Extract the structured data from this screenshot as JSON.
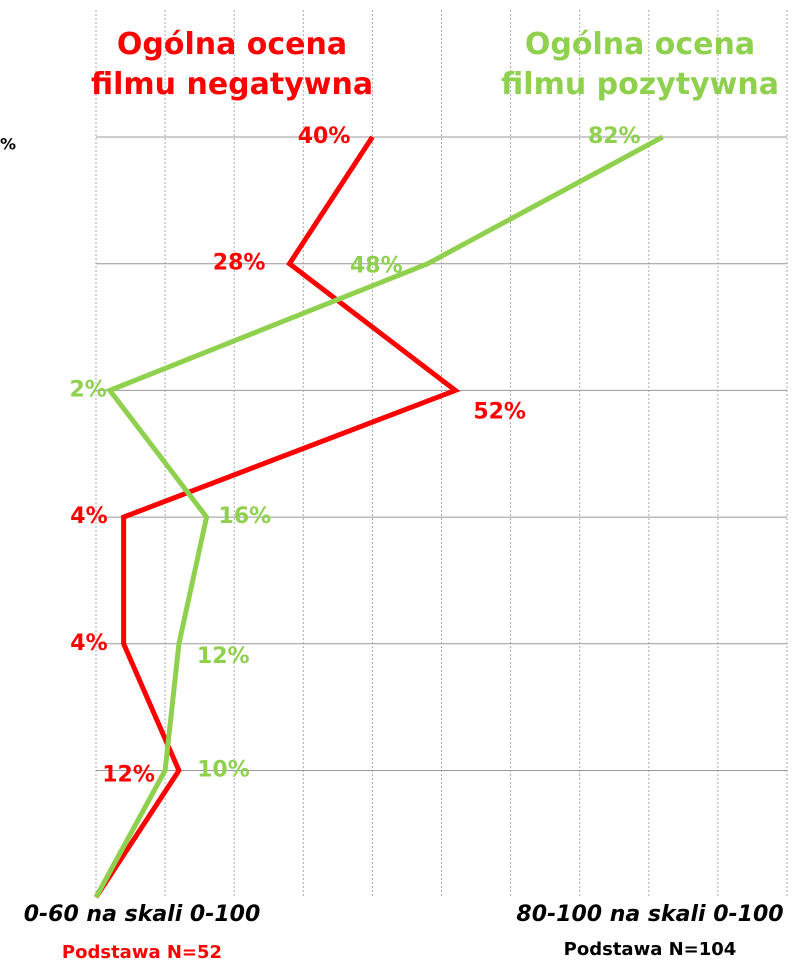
{
  "chart_data": {
    "type": "line",
    "annotation": "%",
    "categories": [
      null,
      null,
      null,
      null,
      null,
      null,
      null
    ],
    "xlim": [
      0,
      100
    ],
    "xticks": [
      0,
      10,
      20,
      30,
      40,
      50,
      60,
      70,
      80,
      90,
      100
    ],
    "grid": true,
    "series": [
      {
        "name": "Ogólna ocena filmu negatywna",
        "color": "#ff0000",
        "values": [
          40,
          28,
          52,
          4,
          4,
          12,
          0
        ],
        "value_labels": [
          "40%",
          "28%",
          "52%",
          "4%",
          "4%",
          "12%",
          null
        ],
        "group_label": "0-60 na skali 0-100",
        "base": "Podstawa N=52"
      },
      {
        "name": "Ogólna ocena filmu pozytywna",
        "color": "#8fd14f",
        "values": [
          82,
          48,
          2,
          16,
          12,
          10,
          0
        ],
        "value_labels": [
          "82%",
          "48%",
          "2%",
          "16%",
          "12%",
          "10%",
          null
        ],
        "group_label": "80-100 na skali 0-100",
        "base": "Podstawa N=104"
      }
    ]
  }
}
